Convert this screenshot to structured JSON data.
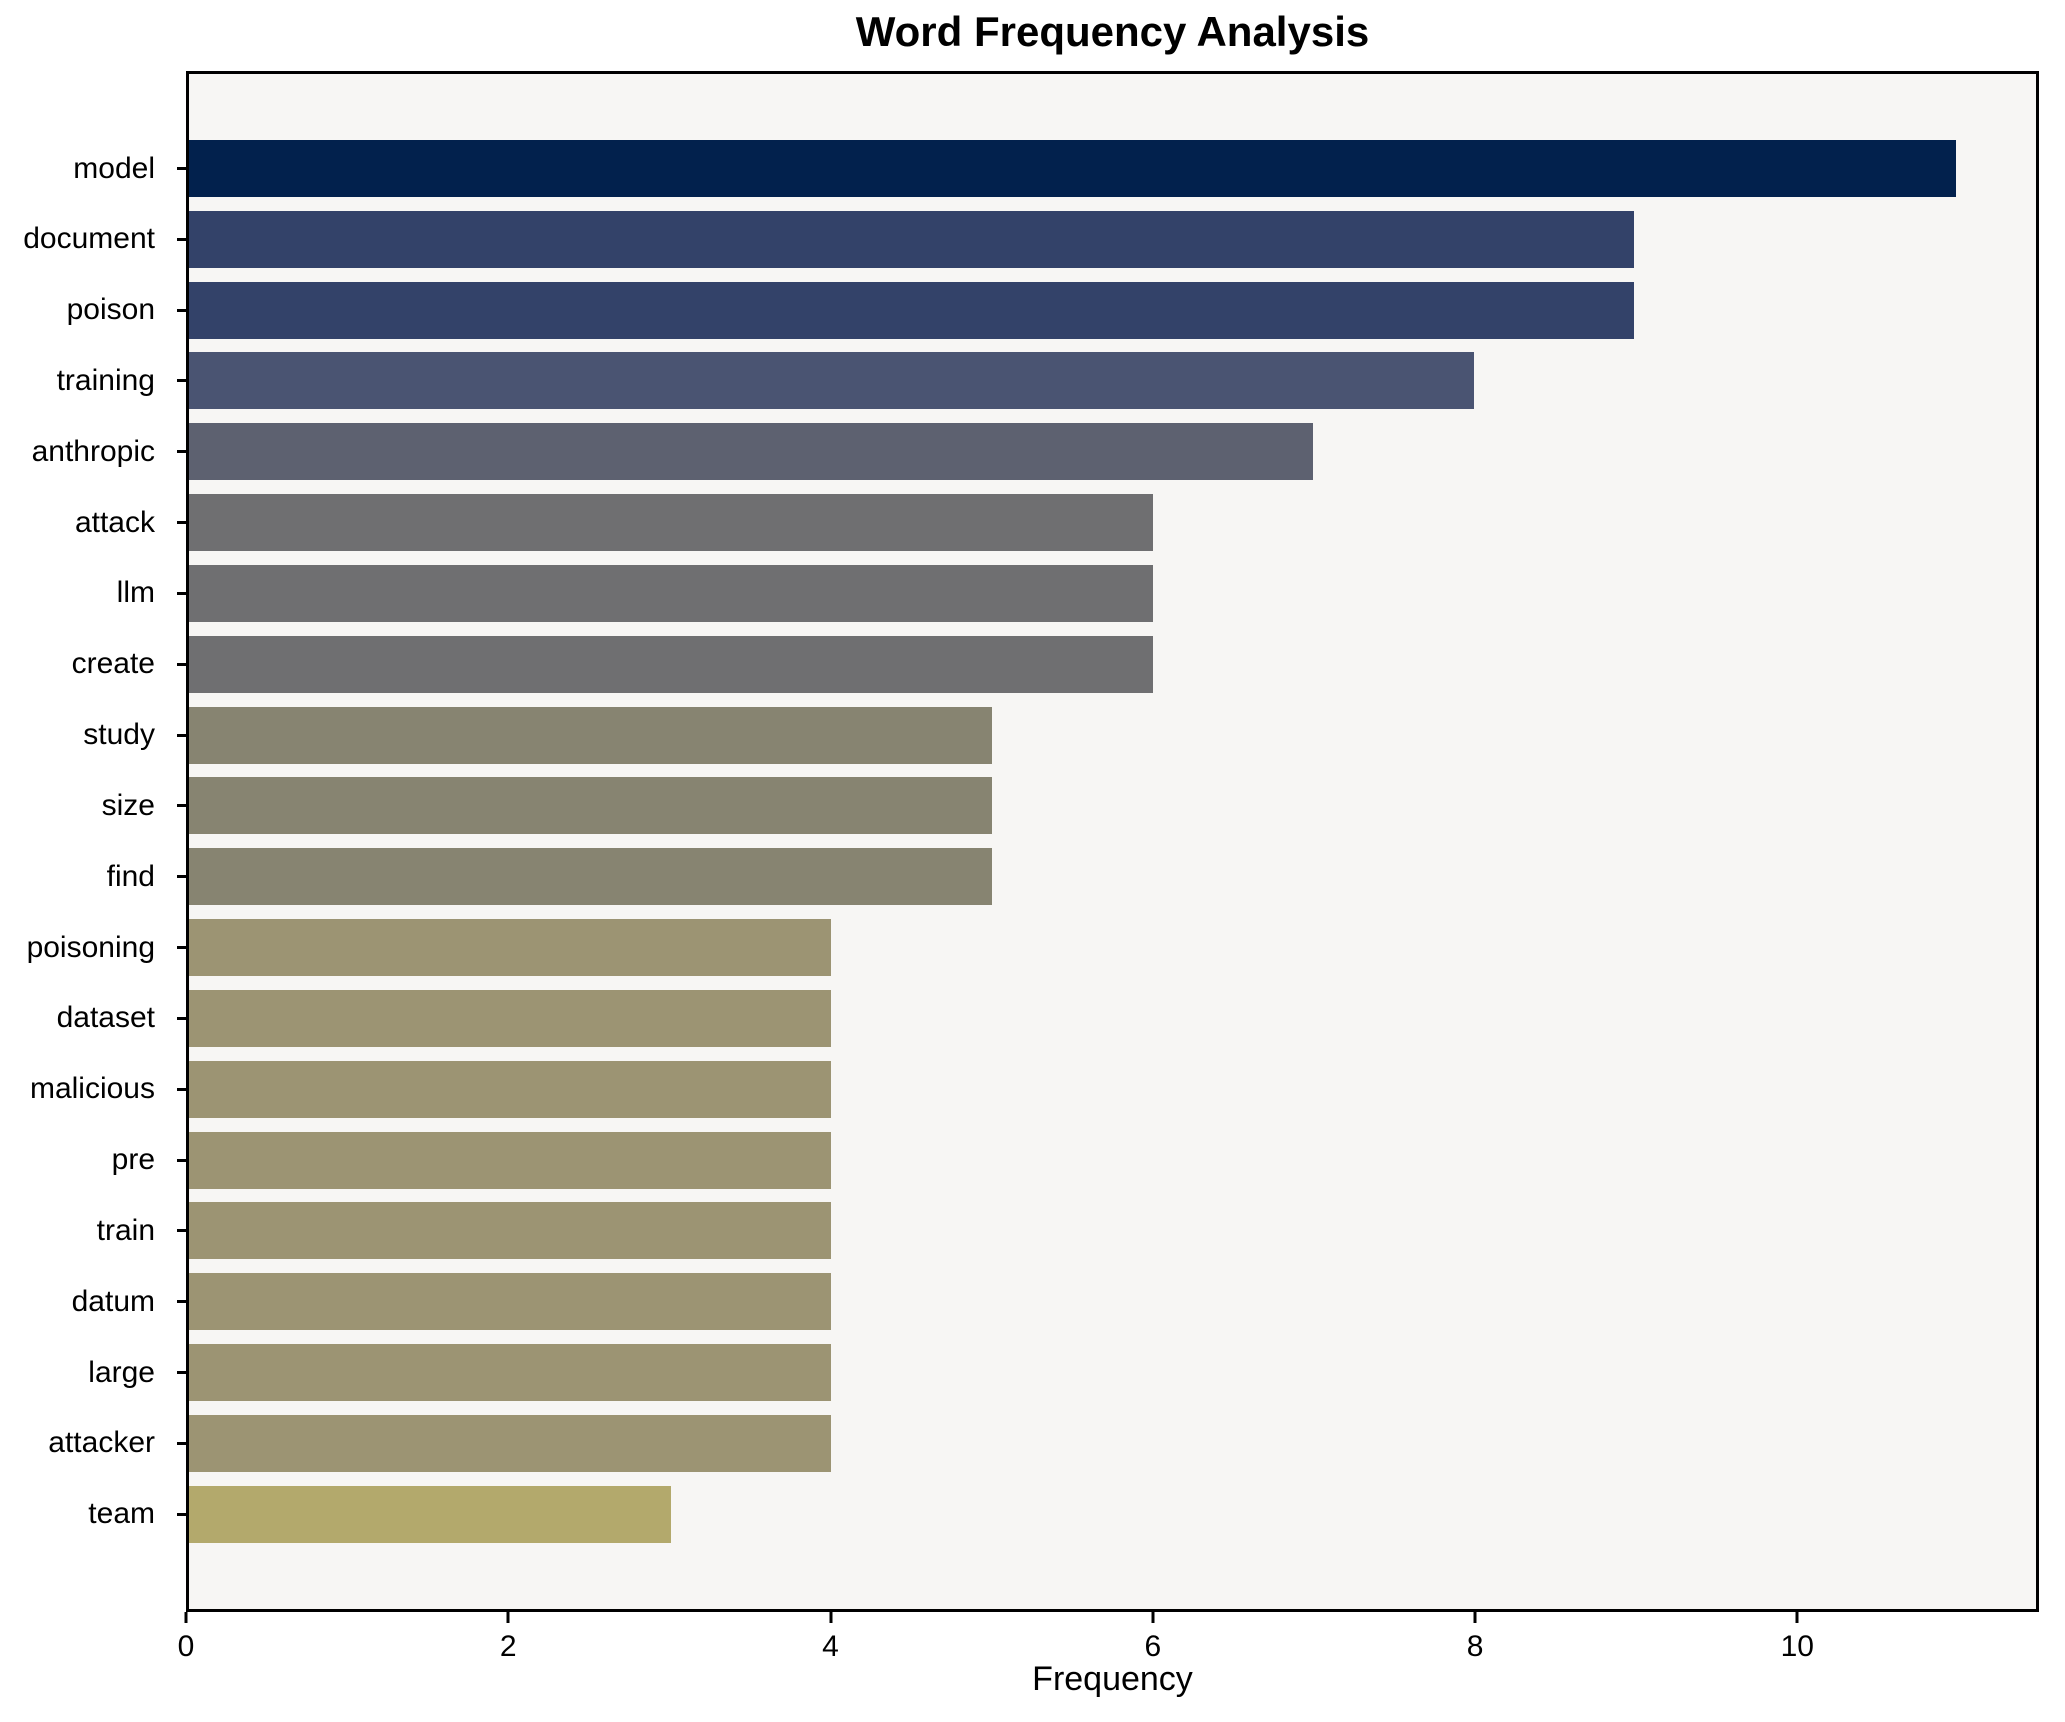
{
  "title": "Word Frequency Analysis",
  "xlabel": "Frequency",
  "chart_data": {
    "type": "bar",
    "orientation": "horizontal",
    "title": "Word Frequency Analysis",
    "xlabel": "Frequency",
    "ylabel": "",
    "xlim": [
      0,
      11.5
    ],
    "xticks": [
      0,
      2,
      4,
      6,
      8,
      10
    ],
    "grid": false,
    "legend": null,
    "plot_background": "#f7f6f4",
    "figure_background": "#ffffff",
    "spine_color": "#000000",
    "categories": [
      "model",
      "document",
      "poison",
      "training",
      "anthropic",
      "attack",
      "llm",
      "create",
      "study",
      "size",
      "find",
      "poisoning",
      "dataset",
      "malicious",
      "pre",
      "train",
      "datum",
      "large",
      "attacker",
      "team"
    ],
    "values": [
      11,
      9,
      9,
      8,
      7,
      6,
      6,
      6,
      5,
      5,
      5,
      4,
      4,
      4,
      4,
      4,
      4,
      4,
      4,
      3
    ],
    "bar_colors": [
      "#02214d",
      "#334269",
      "#334269",
      "#4a5472",
      "#5d6170",
      "#6f6f71",
      "#6f6f71",
      "#6f6f71",
      "#878471",
      "#878471",
      "#878471",
      "#9c9473",
      "#9c9473",
      "#9c9473",
      "#9c9473",
      "#9c9473",
      "#9c9473",
      "#9c9473",
      "#9c9473",
      "#b3a96c"
    ]
  }
}
